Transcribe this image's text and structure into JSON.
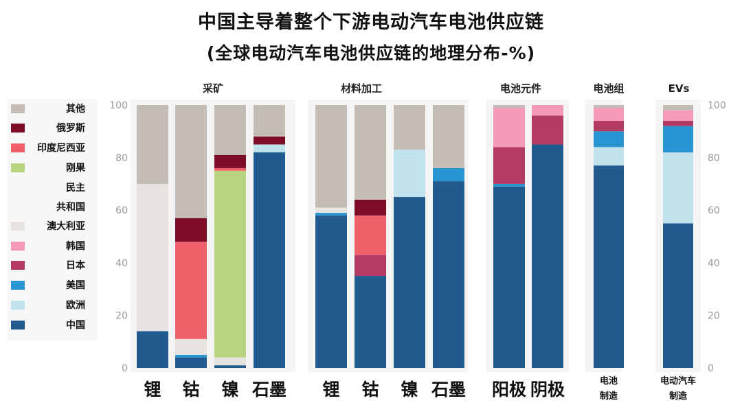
{
  "header": {
    "title": "中国主导着整个下游电动汽车电池供应链",
    "subtitle": "(全球电动汽车电池供应链的地理分布-%)"
  },
  "colors": {
    "其他": "#c2bcb5",
    "俄罗斯": "#7d0d26",
    "印度尼西亚": "#f0606a",
    "刚果民主共和国": "#b7d47e",
    "澳大利亚": "#e6e3e1",
    "韩国": "#f59ab9",
    "日本": "#b33a63",
    "美国": "#2a95d3",
    "欧洲": "#bfe2ec",
    "中国": "#215a8f"
  },
  "legend": [
    {
      "key": "其他",
      "lines": [
        "其他"
      ]
    },
    {
      "key": "俄罗斯",
      "lines": [
        "俄罗斯"
      ]
    },
    {
      "key": "印度尼西亚",
      "lines": [
        "印度尼西亚"
      ]
    },
    {
      "key": "刚果民主共和国",
      "lines": [
        "刚果",
        "民主",
        "共和国"
      ]
    },
    {
      "key": "澳大利亚",
      "lines": [
        "澳大利亚"
      ]
    },
    {
      "key": "韩国",
      "lines": [
        "韩国"
      ]
    },
    {
      "key": "日本",
      "lines": [
        "日本"
      ]
    },
    {
      "key": "美国",
      "lines": [
        "美国"
      ]
    },
    {
      "key": "欧洲",
      "lines": [
        "欧洲"
      ]
    },
    {
      "key": "中国",
      "lines": [
        "中国"
      ]
    }
  ],
  "chart_data": {
    "type": "bar",
    "stacked": true,
    "ylim": [
      0,
      100
    ],
    "yticks": [
      "0",
      "20",
      "40",
      "60",
      "80",
      "100"
    ],
    "groups": [
      {
        "label": "采矿",
        "categories": [
          "锂",
          "钴",
          "镍",
          "石墨"
        ]
      },
      {
        "label": "材料加工",
        "categories": [
          "锂",
          "钴",
          "镍",
          "石墨"
        ]
      },
      {
        "label": "电池元件",
        "categories": [
          "阳极",
          "阴极"
        ]
      },
      {
        "label": "电池组",
        "categories": [
          "电池\n制造"
        ]
      },
      {
        "label": "EVs",
        "categories": [
          "电动汽车\n制造"
        ]
      }
    ],
    "series_order": [
      "中国",
      "欧洲",
      "美国",
      "日本",
      "韩国",
      "澳大利亚",
      "刚果民主共和国",
      "印度尼西亚",
      "俄罗斯",
      "其他"
    ],
    "bars": [
      {
        "group": "采矿",
        "category": "锂",
        "values": {
          "中国": 14,
          "澳大利亚": 56,
          "其他": 30
        }
      },
      {
        "group": "采矿",
        "category": "钴",
        "values": {
          "中国": 4,
          "美国": 1,
          "澳大利亚": 6,
          "印度尼西亚": 37,
          "俄罗斯": 9,
          "其他": 43
        }
      },
      {
        "group": "采矿",
        "category": "镍",
        "values": {
          "中国": 1,
          "澳大利亚": 3,
          "刚果民主共和国": 71,
          "印度尼西亚": 1,
          "俄罗斯": 5,
          "其他": 19
        }
      },
      {
        "group": "采矿",
        "category": "石墨",
        "values": {
          "中国": 82,
          "欧洲": 3,
          "俄罗斯": 3,
          "其他": 12
        }
      },
      {
        "group": "材料加工",
        "category": "锂",
        "values": {
          "中国": 58,
          "美国": 1,
          "澳大利亚": 2,
          "其他": 39
        }
      },
      {
        "group": "材料加工",
        "category": "钴",
        "values": {
          "中国": 35,
          "日本": 8,
          "印度尼西亚": 15,
          "俄罗斯": 6,
          "其他": 36
        }
      },
      {
        "group": "材料加工",
        "category": "镍",
        "values": {
          "中国": 65,
          "欧洲": 18,
          "其他": 17
        }
      },
      {
        "group": "材料加工",
        "category": "石墨",
        "values": {
          "中国": 71,
          "美国": 5,
          "其他": 24
        }
      },
      {
        "group": "电池元件",
        "category": "阳极",
        "values": {
          "中国": 69,
          "美国": 1,
          "日本": 14,
          "韩国": 15,
          "其他": 1
        }
      },
      {
        "group": "电池元件",
        "category": "阴极",
        "values": {
          "中国": 85,
          "日本": 11,
          "韩国": 4
        }
      },
      {
        "group": "电池组",
        "category": "电池\n制造",
        "values": {
          "中国": 77,
          "欧洲": 7,
          "美国": 6,
          "日本": 4,
          "韩国": 5,
          "其他": 1
        }
      },
      {
        "group": "EVs",
        "category": "电动汽车\n制造",
        "values": {
          "中国": 55,
          "欧洲": 27,
          "美国": 10,
          "日本": 2,
          "韩国": 4,
          "其他": 2
        }
      }
    ]
  }
}
